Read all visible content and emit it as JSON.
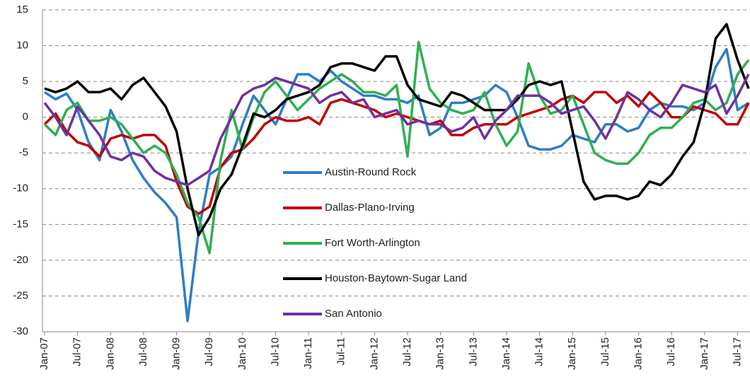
{
  "chart_data": {
    "type": "line",
    "categories": [
      "Jan-07",
      null,
      null,
      "Jul-07",
      null,
      null,
      "Jan-08",
      null,
      null,
      "Jul-08",
      null,
      null,
      "Jan-09",
      null,
      null,
      "Jul-09",
      null,
      null,
      "Jan-10",
      null,
      null,
      "Jul-10",
      null,
      null,
      "Jan-11",
      null,
      null,
      "Jul-11",
      null,
      null,
      "Jan-12",
      null,
      null,
      "Jul-12",
      null,
      null,
      "Jan-13",
      null,
      null,
      "Jul-13",
      null,
      null,
      "Jan-14",
      null,
      null,
      "Jul-14",
      null,
      null,
      "Jan-15",
      null,
      null,
      "Jul-15",
      null,
      null,
      "Jan-16",
      null,
      null,
      "Jul-16",
      null,
      null,
      "Jan-17",
      null,
      null,
      "Jul-17",
      null
    ],
    "series": [
      {
        "name": "Austin-Round Rock",
        "color": "#2e7dc6",
        "values": [
          3.5,
          2.5,
          3.3,
          1,
          -3.5,
          -6,
          1,
          -2,
          -6,
          -8.5,
          -10.5,
          -12,
          -14,
          -28.5,
          -16,
          -8,
          -7,
          -5.5,
          -1,
          3,
          1,
          -1,
          2.5,
          6,
          6,
          5,
          6.5,
          5,
          4,
          3,
          3,
          2.5,
          2.5,
          2,
          3,
          -2.5,
          -1.5,
          2,
          2,
          2.5,
          3,
          4.5,
          3.5,
          0,
          -4,
          -4.5,
          -4.5,
          -4,
          -2.5,
          -3,
          -3.5,
          -1,
          -1,
          -2,
          -1.5,
          1,
          2,
          1.5,
          1.5,
          1,
          2,
          7,
          9.5,
          1,
          2
        ]
      },
      {
        "name": "Dallas-Plano-Irving",
        "color": "#c00000",
        "values": [
          -1,
          0.5,
          -2,
          -3.5,
          -4,
          -5.5,
          -3,
          -2.5,
          -3,
          -2.5,
          -2.5,
          -4,
          -9,
          -12.5,
          -13.5,
          -12.5,
          -7,
          -5,
          -4.5,
          -3,
          -1,
          0,
          -0.5,
          -0.5,
          0,
          -1,
          2,
          2.5,
          2,
          1.5,
          1,
          0,
          0.5,
          0,
          -0.5,
          -1,
          -0.5,
          -2.5,
          -2.5,
          -1.5,
          -1,
          -1,
          -1,
          0,
          0.5,
          1,
          1.5,
          2.5,
          3,
          2,
          3.5,
          3.5,
          2,
          3,
          1.5,
          3.5,
          2,
          0,
          0,
          1.5,
          1,
          0.5,
          -1,
          -1,
          2
        ]
      },
      {
        "name": "Fort Worth-Arlington",
        "color": "#2fb050",
        "values": [
          -1,
          -2.5,
          1,
          2,
          -0.5,
          -0.5,
          0,
          -1,
          -3,
          -5,
          -4,
          -5,
          -8,
          -12,
          -14,
          -19,
          -6,
          1,
          -4.5,
          0,
          3.5,
          5,
          3,
          1,
          2.5,
          4,
          5,
          6,
          5,
          3.5,
          3.5,
          3,
          4.5,
          -5.5,
          10.5,
          4,
          2,
          1,
          0.5,
          1,
          3.5,
          -1,
          -4,
          -2,
          7.5,
          3,
          0.5,
          1,
          3,
          -1,
          -5,
          -6,
          -6.5,
          -6.5,
          -5,
          -2.5,
          -1.5,
          -1.5,
          0,
          2,
          2.5,
          1,
          2,
          6,
          8
        ]
      },
      {
        "name": "Houston-Baytown-Sugar Land",
        "color": "#000000",
        "values": [
          4,
          3.5,
          4,
          5,
          3.5,
          3.5,
          4,
          2.5,
          4.5,
          5.5,
          3.5,
          1.5,
          -2,
          -10,
          -16.5,
          -14,
          -10,
          -8,
          -4,
          0.5,
          0,
          1,
          2.5,
          3,
          3.5,
          4.5,
          7,
          7.5,
          7.5,
          7,
          6.5,
          8.5,
          8.5,
          4.5,
          2.5,
          2,
          1.5,
          3.5,
          3,
          2,
          1,
          1,
          1,
          2.5,
          4.5,
          5,
          4.5,
          5,
          -2,
          -9,
          -11.5,
          -11,
          -11,
          -11.5,
          -11,
          -9,
          -9.5,
          -8,
          -5.5,
          -3.5,
          2,
          11,
          13,
          8,
          4
        ]
      },
      {
        "name": "San Antonio",
        "color": "#7030a0",
        "values": [
          2,
          0,
          -2.5,
          1.5,
          -0.5,
          -2.5,
          -5.5,
          -6,
          -5,
          -5.5,
          -7.5,
          -8.5,
          -9,
          -9.5,
          -8.5,
          -7.5,
          -3,
          0,
          3,
          4,
          4.5,
          5.5,
          5,
          4.5,
          4,
          2,
          3,
          3.5,
          2,
          2.5,
          0,
          0.5,
          1,
          -1,
          -0.5,
          -1,
          -1,
          -2,
          -1.5,
          0,
          -3,
          -0.5,
          1,
          3,
          3,
          3,
          2,
          0.5,
          1,
          1.5,
          -0.5,
          -3,
          0,
          3.5,
          2.5,
          1,
          0,
          2,
          4.5,
          4,
          3.5,
          4.5,
          0.5,
          3,
          6
        ]
      }
    ],
    "ylim": [
      -30,
      15
    ],
    "yticks": [
      -30,
      -25,
      -20,
      -15,
      -10,
      -5,
      0,
      5,
      10,
      15
    ],
    "grid": true
  }
}
